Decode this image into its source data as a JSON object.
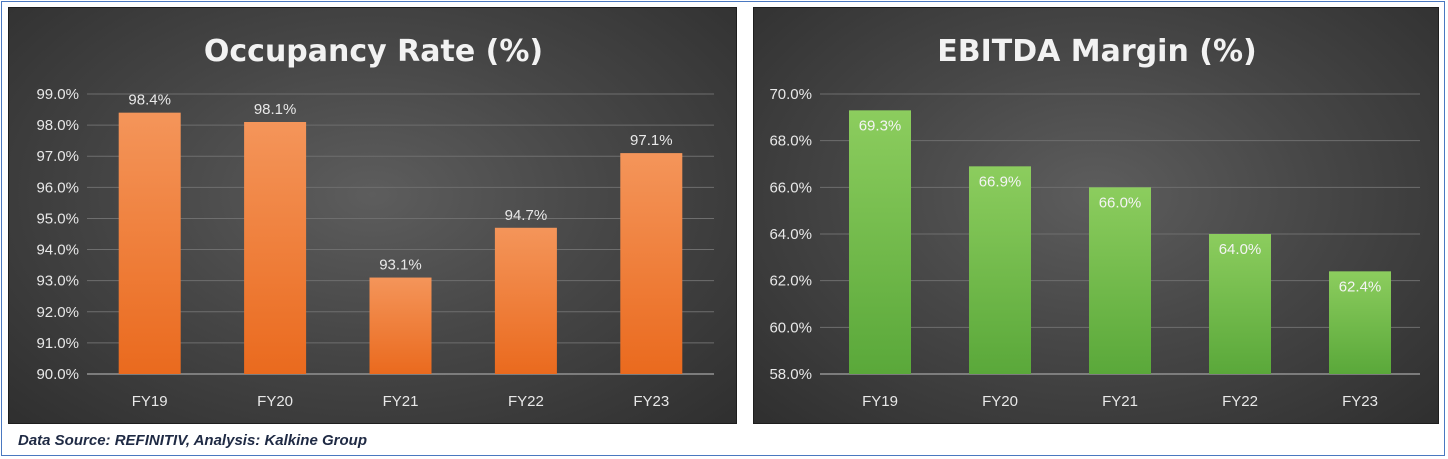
{
  "chart_data": [
    {
      "type": "bar",
      "title": "Occupancy Rate (%)",
      "categories": [
        "FY19",
        "FY20",
        "FY21",
        "FY22",
        "FY23"
      ],
      "values": [
        98.4,
        98.1,
        93.1,
        94.7,
        97.1
      ],
      "data_labels": [
        "98.4%",
        "98.1%",
        "93.1%",
        "94.7%",
        "97.1%"
      ],
      "ylim": [
        90.0,
        99.0
      ],
      "y_ticks": [
        90.0,
        91.0,
        92.0,
        93.0,
        94.0,
        95.0,
        96.0,
        97.0,
        98.0,
        99.0
      ],
      "y_tick_labels": [
        "90.0%",
        "91.0%",
        "92.0%",
        "93.0%",
        "94.0%",
        "95.0%",
        "96.0%",
        "97.0%",
        "98.0%",
        "99.0%"
      ],
      "xlabel": "",
      "ylabel": "",
      "grid": true,
      "label_position": "outside-end",
      "colors": {
        "bar_top": "#f4955a",
        "bar_bottom": "#ea6a1e",
        "grid": "#6e6e6e"
      }
    },
    {
      "type": "bar",
      "title": "EBITDA Margin (%)",
      "categories": [
        "FY19",
        "FY20",
        "FY21",
        "FY22",
        "FY23"
      ],
      "values": [
        69.3,
        66.9,
        66.0,
        64.0,
        62.4
      ],
      "data_labels": [
        "69.3%",
        "66.9%",
        "66.0%",
        "64.0%",
        "62.4%"
      ],
      "ylim": [
        58.0,
        70.0
      ],
      "y_ticks": [
        58.0,
        60.0,
        62.0,
        64.0,
        66.0,
        68.0,
        70.0
      ],
      "y_tick_labels": [
        "58.0%",
        "60.0%",
        "62.0%",
        "64.0%",
        "66.0%",
        "68.0%",
        "70.0%"
      ],
      "xlabel": "",
      "ylabel": "",
      "grid": true,
      "label_position": "inside-end",
      "colors": {
        "bar_top": "#8ccd5e",
        "bar_bottom": "#5aa83a",
        "grid": "#6e6e6e"
      }
    }
  ],
  "footer": {
    "source": "Data Source: REFINITIV, Analysis: Kalkine Group"
  }
}
